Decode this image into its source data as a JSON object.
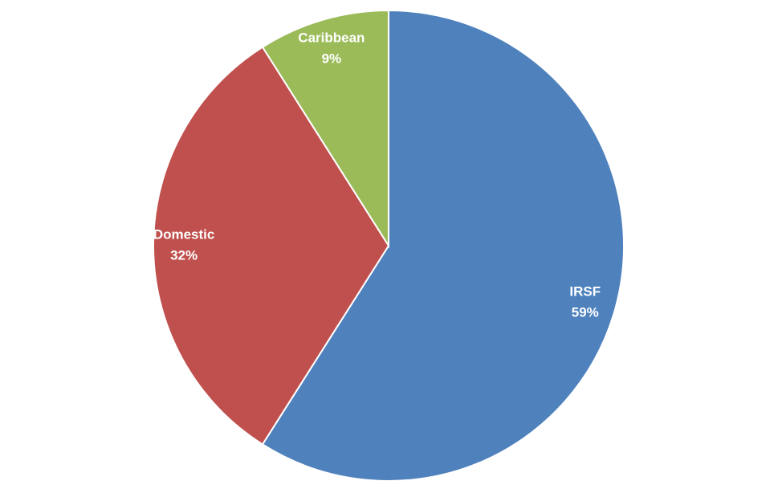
{
  "chart_data": {
    "type": "pie",
    "categories": [
      "IRSF",
      "Domestic",
      "Caribbean"
    ],
    "values": [
      59,
      32,
      9
    ],
    "value_labels": [
      "59%",
      "32%",
      "9%"
    ],
    "colors": [
      "#4f81bd",
      "#c0504d",
      "#9bbb59"
    ]
  }
}
